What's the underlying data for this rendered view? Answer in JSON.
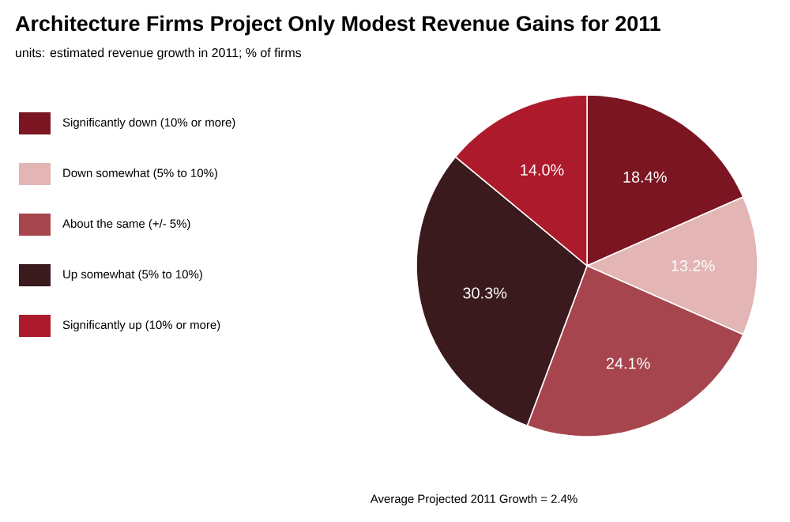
{
  "chart_data": {
    "type": "pie",
    "title": "Architecture Firms Project Only Modest Revenue Gains for 2011",
    "subtitle": "units: estimated revenue growth in 2011; % of firms",
    "categories": [
      "Significantly down (10% or more)",
      "Down somewhat (5% to 10%)",
      "About the same (+/- 5%)",
      "Up somewhat (5% to 10%)",
      "Significantly up (10% or more)"
    ],
    "values": [
      18.4,
      13.2,
      24.1,
      30.3,
      14.0
    ],
    "colors": [
      "#7a1521",
      "#e3b5b5",
      "#a6454d",
      "#3b1a1e",
      "#ad1a2b"
    ],
    "value_labels": [
      "18.4%",
      "13.2%",
      "24.1%",
      "30.3%",
      "14.0%"
    ],
    "legend": "left",
    "annotations": [
      "Average Projected 2011 Growth = 2.4%"
    ]
  }
}
